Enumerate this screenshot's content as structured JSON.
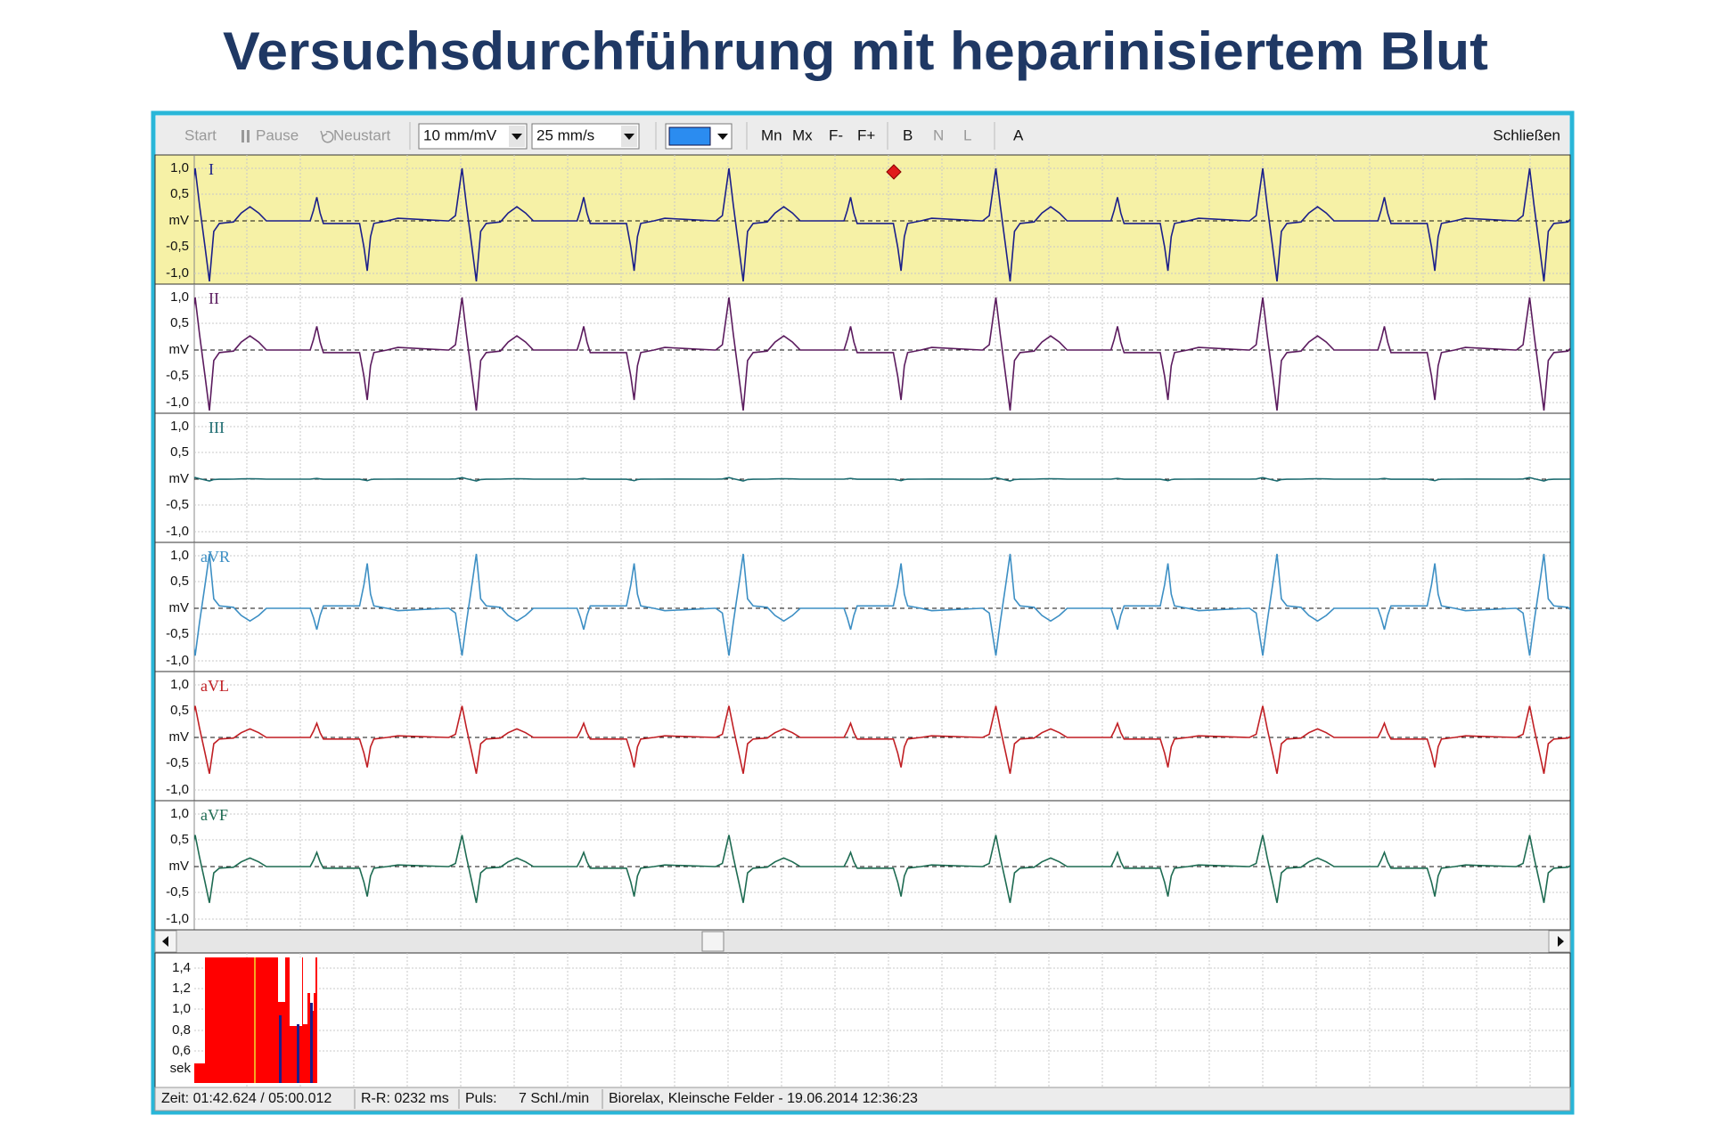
{
  "title": "Versuchsdurchführung mit heparinisiertem Blut",
  "toolbar": {
    "start": "Start",
    "pause": "Pause",
    "restart": "Neustart",
    "sensitivity": "10 mm/mV",
    "speed": "25 mm/s",
    "mn": "Mn",
    "mx": "Mx",
    "f_minus": "F-",
    "f_plus": "F+",
    "b": "B",
    "n": "N",
    "l": "L",
    "a": "A",
    "close": "Schließen"
  },
  "leads": [
    {
      "name": "I"
    },
    {
      "name": "II"
    },
    {
      "name": "III"
    },
    {
      "name": "aVR"
    },
    {
      "name": "aVL"
    },
    {
      "name": "aVF"
    }
  ],
  "lead_axis_labels": [
    "1,0",
    "0,5",
    "mV",
    "-0,5",
    "-1,0"
  ],
  "histogram_axis_labels": [
    "1,4",
    "1,2",
    "1,0",
    "0,8",
    "0,6",
    "sek"
  ],
  "status": {
    "time": "Zeit: 01:42.624 / 05:00.012",
    "rr": "R-R: 0232 ms",
    "pulse_label": "Puls:",
    "pulse": "7 Schl./min",
    "info": "Biorelax, Kleinsche Felder - 19.06.2014 12:36:23"
  }
}
